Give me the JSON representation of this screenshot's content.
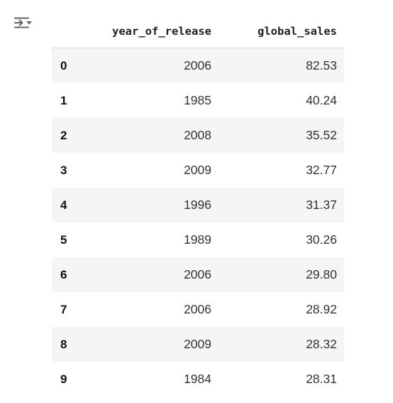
{
  "output": {
    "toggle_icon": "output-collapse-icon",
    "dataframe": {
      "columns": [
        "year_of_release",
        "global_sales"
      ],
      "rows": [
        {
          "index": "0",
          "year_of_release": "2006",
          "global_sales": "82.53"
        },
        {
          "index": "1",
          "year_of_release": "1985",
          "global_sales": "40.24"
        },
        {
          "index": "2",
          "year_of_release": "2008",
          "global_sales": "35.52"
        },
        {
          "index": "3",
          "year_of_release": "2009",
          "global_sales": "32.77"
        },
        {
          "index": "4",
          "year_of_release": "1996",
          "global_sales": "31.37"
        },
        {
          "index": "5",
          "year_of_release": "1989",
          "global_sales": "30.26"
        },
        {
          "index": "6",
          "year_of_release": "2006",
          "global_sales": "29.80"
        },
        {
          "index": "7",
          "year_of_release": "2006",
          "global_sales": "28.92"
        },
        {
          "index": "8",
          "year_of_release": "2009",
          "global_sales": "28.32"
        },
        {
          "index": "9",
          "year_of_release": "1984",
          "global_sales": "28.31"
        }
      ]
    },
    "colors": {
      "stripe": "#f5f5f5",
      "header_rule": "#d8d8d8",
      "icon": "#5f6368"
    }
  }
}
